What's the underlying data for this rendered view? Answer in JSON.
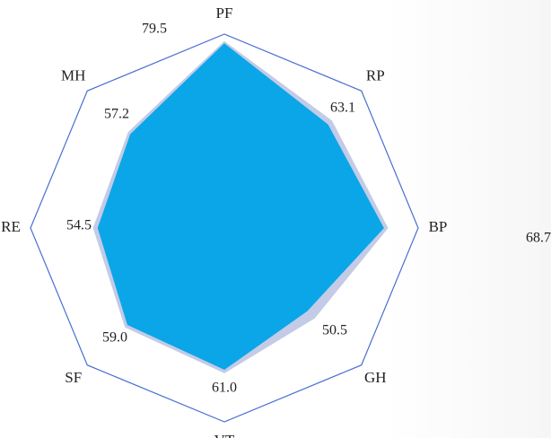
{
  "chart_data": {
    "type": "radar",
    "categories": [
      "PF",
      "RP",
      "BP",
      "GH",
      "VT",
      "SF",
      "RE",
      "MH"
    ],
    "rlim": [
      0,
      84
    ],
    "series": [
      {
        "color": "#c3cbe6",
        "values": [
          80.5,
          65.5,
          70.5,
          55.0,
          62.5,
          60.5,
          56.5,
          58.5
        ]
      },
      {
        "color": "#0aa6e8",
        "values": [
          79.5,
          63.1,
          68.7,
          50.5,
          61.0,
          59.0,
          54.5,
          57.2
        ]
      }
    ],
    "value_labels": [
      "79.5",
      "63.1",
      "68.7",
      "50.5",
      "61.0",
      "59.0",
      "54.5",
      "57.2"
    ],
    "grid_color": "#4a6fd0"
  }
}
